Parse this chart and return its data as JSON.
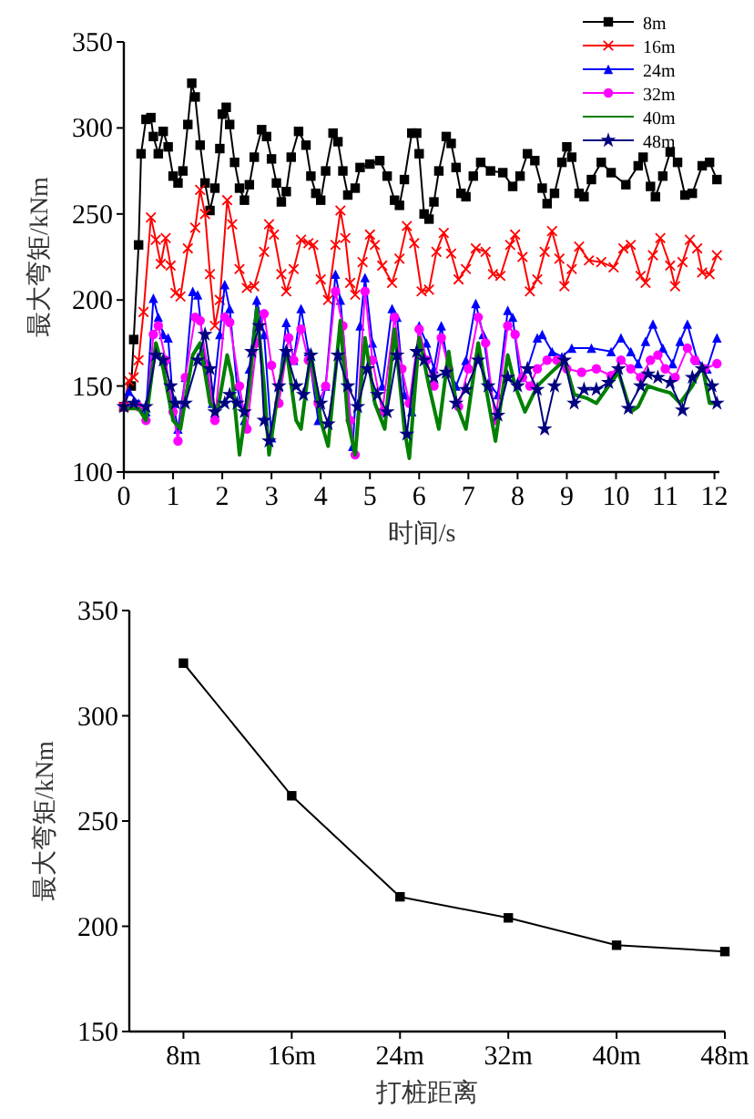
{
  "chart_data": [
    {
      "type": "line",
      "xlabel": "时间/s",
      "ylabel": "最大弯矩/kNm",
      "xlim": [
        0,
        12.1
      ],
      "xticks": [
        0,
        1,
        2,
        3,
        4,
        5,
        6,
        7,
        8,
        9,
        10,
        11,
        12
      ],
      "ylim": [
        100,
        350
      ],
      "yticks": [
        100,
        150,
        200,
        250,
        300,
        350
      ],
      "legend": "top right",
      "grid": false,
      "series": [
        {
          "name": "8m",
          "color": "#000000",
          "marker": "square",
          "x": [
            0,
            0.15,
            0.2,
            0.3,
            0.35,
            0.45,
            0.55,
            0.6,
            0.7,
            0.8,
            0.9,
            1.0,
            1.1,
            1.2,
            1.3,
            1.38,
            1.45,
            1.55,
            1.65,
            1.75,
            1.85,
            1.95,
            2.0,
            2.08,
            2.15,
            2.25,
            2.35,
            2.45,
            2.55,
            2.65,
            2.8,
            2.9,
            3.0,
            3.1,
            3.2,
            3.3,
            3.4,
            3.55,
            3.7,
            3.8,
            3.9,
            4.0,
            4.1,
            4.25,
            4.35,
            4.45,
            4.55,
            4.7,
            4.8,
            5.0,
            5.2,
            5.35,
            5.5,
            5.6,
            5.7,
            5.85,
            5.95,
            6.0,
            6.1,
            6.2,
            6.3,
            6.4,
            6.55,
            6.65,
            6.75,
            6.85,
            6.95,
            7.1,
            7.25,
            7.45,
            7.7,
            7.9,
            8.05,
            8.2,
            8.35,
            8.5,
            8.6,
            8.75,
            8.9,
            9.0,
            9.1,
            9.25,
            9.35,
            9.5,
            9.7,
            9.9,
            10.2,
            10.45,
            10.55,
            10.7,
            10.8,
            10.95,
            11.1,
            11.25,
            11.4,
            11.55,
            11.75,
            11.9,
            12.05
          ],
          "values": [
            138,
            150,
            177,
            232,
            285,
            305,
            306,
            295,
            285,
            298,
            289,
            272,
            268,
            275,
            302,
            326,
            318,
            290,
            268,
            252,
            265,
            288,
            308,
            312,
            302,
            280,
            265,
            258,
            267,
            283,
            299,
            295,
            282,
            268,
            257,
            263,
            283,
            298,
            290,
            272,
            262,
            258,
            275,
            297,
            292,
            275,
            261,
            265,
            277,
            279,
            281,
            272,
            258,
            255,
            270,
            297,
            297,
            285,
            250,
            247,
            257,
            275,
            295,
            291,
            277,
            262,
            260,
            272,
            280,
            275,
            274,
            266,
            272,
            285,
            281,
            265,
            256,
            262,
            280,
            289,
            283,
            262,
            260,
            270,
            280,
            274,
            267,
            278,
            283,
            266,
            260,
            272,
            286,
            280,
            261,
            262,
            278,
            280,
            270
          ]
        },
        {
          "name": "16m",
          "color": "#ff0000",
          "marker": "cross",
          "x": [
            0,
            0.1,
            0.2,
            0.3,
            0.4,
            0.55,
            0.65,
            0.75,
            0.85,
            0.95,
            1.05,
            1.15,
            1.3,
            1.45,
            1.55,
            1.65,
            1.75,
            1.85,
            1.95,
            2.1,
            2.2,
            2.35,
            2.5,
            2.65,
            2.85,
            2.95,
            3.05,
            3.2,
            3.3,
            3.45,
            3.6,
            3.75,
            3.85,
            4.0,
            4.15,
            4.3,
            4.4,
            4.5,
            4.6,
            4.7,
            4.85,
            5.0,
            5.1,
            5.25,
            5.45,
            5.6,
            5.75,
            5.9,
            6.05,
            6.2,
            6.35,
            6.5,
            6.65,
            6.8,
            6.95,
            7.15,
            7.35,
            7.5,
            7.65,
            7.85,
            7.95,
            8.1,
            8.25,
            8.4,
            8.55,
            8.7,
            8.85,
            8.95,
            9.1,
            9.25,
            9.45,
            9.7,
            9.95,
            10.15,
            10.3,
            10.5,
            10.6,
            10.75,
            10.9,
            11.1,
            11.2,
            11.35,
            11.5,
            11.65,
            11.75,
            11.9,
            12.05
          ],
          "values": [
            138,
            153,
            155,
            165,
            193,
            248,
            235,
            221,
            236,
            220,
            204,
            202,
            230,
            242,
            264,
            250,
            215,
            185,
            200,
            258,
            244,
            218,
            207,
            208,
            228,
            244,
            238,
            215,
            205,
            218,
            235,
            233,
            232,
            212,
            200,
            232,
            252,
            236,
            210,
            203,
            222,
            238,
            232,
            220,
            210,
            224,
            243,
            233,
            205,
            206,
            228,
            239,
            227,
            212,
            218,
            230,
            228,
            215,
            214,
            232,
            238,
            225,
            205,
            212,
            228,
            240,
            224,
            208,
            218,
            231,
            223,
            222,
            219,
            230,
            232,
            214,
            210,
            226,
            236,
            220,
            208,
            222,
            235,
            230,
            216,
            215,
            226
          ]
        },
        {
          "name": "24m",
          "color": "#0000ff",
          "marker": "triangle",
          "x": [
            0,
            0.1,
            0.3,
            0.45,
            0.6,
            0.7,
            0.8,
            0.9,
            1.0,
            1.1,
            1.25,
            1.4,
            1.5,
            1.65,
            1.8,
            1.95,
            2.05,
            2.15,
            2.3,
            2.45,
            2.55,
            2.7,
            2.85,
            3.0,
            3.15,
            3.3,
            3.45,
            3.6,
            3.75,
            3.95,
            4.1,
            4.3,
            4.4,
            4.55,
            4.65,
            4.8,
            4.9,
            5.05,
            5.25,
            5.45,
            5.55,
            5.7,
            5.85,
            6.0,
            6.15,
            6.3,
            6.45,
            6.6,
            6.75,
            6.95,
            7.15,
            7.3,
            7.45,
            7.6,
            7.8,
            7.9,
            8.05,
            8.2,
            8.4,
            8.5,
            8.7,
            8.9,
            9.1,
            9.5,
            9.9,
            10.1,
            10.3,
            10.45,
            10.6,
            10.75,
            10.95,
            11.15,
            11.3,
            11.45,
            11.65,
            11.85,
            12.05
          ],
          "values": [
            140,
            147,
            140,
            135,
            201,
            190,
            180,
            178,
            140,
            125,
            155,
            205,
            203,
            165,
            140,
            180,
            209,
            195,
            150,
            130,
            160,
            200,
            180,
            120,
            150,
            187,
            165,
            195,
            170,
            130,
            150,
            215,
            200,
            150,
            115,
            185,
            213,
            175,
            150,
            195,
            190,
            145,
            135,
            185,
            175,
            160,
            185,
            160,
            150,
            165,
            198,
            180,
            150,
            145,
            194,
            190,
            155,
            160,
            178,
            180,
            170,
            167,
            172,
            172,
            170,
            178,
            170,
            163,
            176,
            186,
            172,
            163,
            176,
            186,
            165,
            160,
            178
          ]
        },
        {
          "name": "32m",
          "color": "#ff00ff",
          "marker": "circle",
          "x": [
            0,
            0.3,
            0.45,
            0.6,
            0.7,
            0.85,
            1.0,
            1.1,
            1.25,
            1.45,
            1.55,
            1.7,
            1.85,
            2.05,
            2.15,
            2.35,
            2.5,
            2.7,
            2.85,
            3.0,
            3.15,
            3.35,
            3.45,
            3.6,
            3.75,
            3.95,
            4.1,
            4.3,
            4.45,
            4.6,
            4.7,
            4.9,
            5.05,
            5.25,
            5.5,
            5.65,
            5.8,
            6.0,
            6.15,
            6.3,
            6.45,
            6.6,
            6.8,
            7.0,
            7.2,
            7.35,
            7.55,
            7.8,
            7.95,
            8.1,
            8.25,
            8.4,
            8.6,
            8.8,
            9.0,
            9.3,
            9.6,
            9.9,
            10.1,
            10.3,
            10.5,
            10.7,
            10.85,
            11.0,
            11.2,
            11.45,
            11.6,
            11.8,
            12.05
          ],
          "values": [
            138,
            138,
            130,
            180,
            185,
            165,
            135,
            118,
            155,
            190,
            188,
            160,
            130,
            190,
            187,
            150,
            125,
            175,
            192,
            162,
            140,
            178,
            165,
            183,
            165,
            140,
            150,
            205,
            185,
            130,
            110,
            205,
            165,
            135,
            190,
            160,
            140,
            183,
            165,
            150,
            178,
            160,
            138,
            160,
            190,
            175,
            130,
            185,
            180,
            155,
            150,
            160,
            165,
            165,
            160,
            158,
            160,
            156,
            165,
            160,
            155,
            165,
            168,
            160,
            155,
            172,
            165,
            160,
            163
          ]
        },
        {
          "name": "40m",
          "color": "#008000",
          "marker": "none",
          "x": [
            0,
            0.3,
            0.45,
            0.65,
            0.8,
            1.0,
            1.15,
            1.4,
            1.55,
            1.75,
            1.9,
            2.1,
            2.2,
            2.35,
            2.55,
            2.7,
            2.85,
            2.95,
            3.15,
            3.3,
            3.5,
            3.6,
            3.8,
            4.0,
            4.15,
            4.4,
            4.55,
            4.7,
            4.9,
            5.1,
            5.3,
            5.5,
            5.7,
            5.8,
            6.0,
            6.2,
            6.4,
            6.6,
            6.75,
            6.95,
            7.2,
            7.35,
            7.55,
            7.8,
            7.95,
            8.15,
            8.4,
            8.65,
            8.95,
            9.15,
            9.4,
            9.6,
            9.85,
            10.05,
            10.3,
            10.45,
            10.65,
            10.85,
            11.1,
            11.3,
            11.55,
            11.75,
            11.9,
            12.05
          ],
          "values": [
            137,
            137,
            130,
            175,
            160,
            130,
            125,
            168,
            175,
            140,
            135,
            168,
            155,
            110,
            150,
            195,
            150,
            110,
            150,
            172,
            130,
            125,
            170,
            130,
            115,
            188,
            130,
            110,
            178,
            140,
            125,
            183,
            125,
            108,
            178,
            150,
            125,
            170,
            140,
            125,
            175,
            150,
            118,
            168,
            150,
            135,
            150,
            157,
            165,
            145,
            143,
            140,
            150,
            158,
            135,
            138,
            150,
            148,
            146,
            140,
            150,
            162,
            140,
            140
          ]
        },
        {
          "name": "48m",
          "color": "#000080",
          "marker": "star",
          "x": [
            0,
            0.2,
            0.45,
            0.65,
            0.8,
            0.95,
            1.05,
            1.25,
            1.5,
            1.65,
            1.75,
            1.85,
            2.05,
            2.15,
            2.3,
            2.45,
            2.6,
            2.75,
            2.85,
            2.95,
            3.15,
            3.3,
            3.5,
            3.65,
            3.8,
            4.0,
            4.15,
            4.35,
            4.55,
            4.75,
            4.95,
            5.15,
            5.35,
            5.55,
            5.75,
            5.95,
            6.1,
            6.3,
            6.55,
            6.75,
            6.95,
            7.2,
            7.4,
            7.6,
            7.8,
            8.0,
            8.2,
            8.4,
            8.55,
            8.75,
            8.95,
            9.15,
            9.35,
            9.6,
            9.85,
            10.05,
            10.25,
            10.5,
            10.65,
            10.85,
            11.1,
            11.35,
            11.55,
            11.75,
            11.95,
            12.05
          ],
          "values": [
            138,
            140,
            138,
            168,
            165,
            150,
            140,
            140,
            165,
            180,
            160,
            135,
            140,
            145,
            140,
            135,
            170,
            185,
            130,
            118,
            150,
            170,
            150,
            145,
            168,
            140,
            128,
            168,
            150,
            138,
            160,
            145,
            135,
            168,
            122,
            170,
            165,
            155,
            158,
            140,
            148,
            165,
            150,
            133,
            155,
            150,
            160,
            148,
            125,
            150,
            165,
            140,
            148,
            148,
            152,
            160,
            137,
            150,
            157,
            155,
            152,
            136,
            155,
            160,
            150,
            140
          ]
        }
      ]
    },
    {
      "type": "line",
      "xlabel": "打桩距离",
      "ylabel": "最大弯矩/kNm",
      "categories": [
        "8m",
        "16m",
        "24m",
        "32m",
        "40m",
        "48m"
      ],
      "ylim": [
        150,
        350
      ],
      "yticks": [
        150,
        200,
        250,
        300,
        350
      ],
      "grid": false,
      "legend": false,
      "series": [
        {
          "color": "#000000",
          "marker": "square",
          "values": [
            325,
            262,
            214,
            204,
            191,
            188
          ]
        }
      ]
    }
  ]
}
